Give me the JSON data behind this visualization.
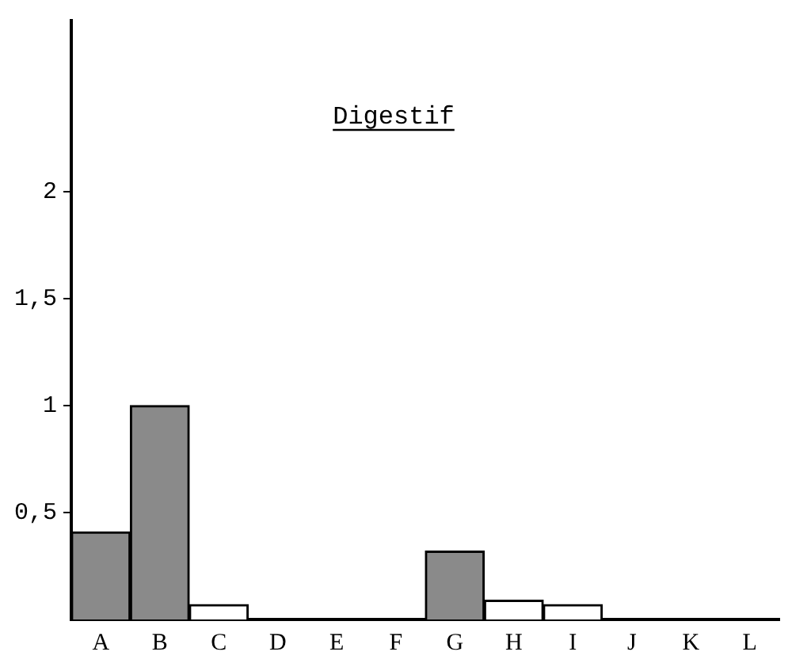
{
  "chart_data": {
    "type": "bar",
    "title": "Digestif",
    "categories": [
      "A",
      "B",
      "C",
      "D",
      "E",
      "F",
      "G",
      "H",
      "I",
      "J",
      "K",
      "L"
    ],
    "values": [
      0.41,
      1.0,
      0.07,
      0,
      0,
      0,
      0.32,
      0.09,
      0.07,
      0,
      0,
      0
    ],
    "colors": [
      "#8a8a8a",
      "#8a8a8a",
      "#ffffff",
      "#ffffff",
      "#ffffff",
      "#ffffff",
      "#8a8a8a",
      "#ffffff",
      "#ffffff",
      "#ffffff",
      "#ffffff",
      "#ffffff"
    ],
    "ylim": [
      0,
      2.8
    ],
    "yticks": [
      {
        "value": 0.5,
        "label": "0,5"
      },
      1,
      {
        "value": 1.5,
        "label": "1,5"
      },
      2
    ],
    "grid": false,
    "legend": false
  }
}
